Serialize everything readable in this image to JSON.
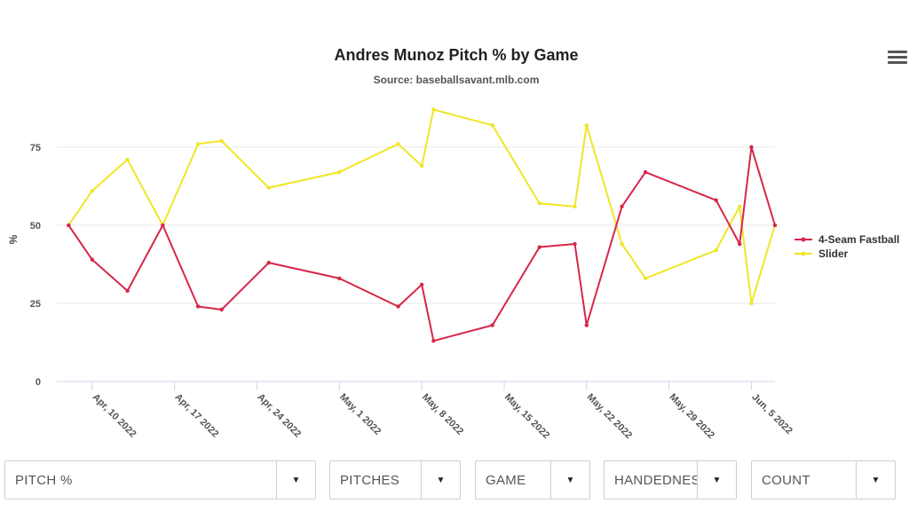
{
  "chart_data": {
    "type": "line",
    "title": "Andres Munoz Pitch % by Game",
    "subtitle": "Source: baseballsavant.mlb.com",
    "ylabel": "%",
    "ylim": [
      0,
      90
    ],
    "yticks": [
      0,
      25,
      50,
      75
    ],
    "xlim": [
      "2022-04-07",
      "2022-06-07"
    ],
    "xticks": [
      "Apr, 10 2022",
      "Apr, 17 2022",
      "Apr, 24 2022",
      "May, 1 2022",
      "May, 8 2022",
      "May, 15 2022",
      "May, 22 2022",
      "May, 29 2022",
      "Jun, 5 2022"
    ],
    "xtick_dates": [
      "2022-04-10",
      "2022-04-17",
      "2022-04-24",
      "2022-05-01",
      "2022-05-08",
      "2022-05-15",
      "2022-05-22",
      "2022-05-29",
      "2022-06-05"
    ],
    "grid": true,
    "legend": "right",
    "x": [
      "2022-04-08",
      "2022-04-10",
      "2022-04-13",
      "2022-04-16",
      "2022-04-19",
      "2022-04-21",
      "2022-04-25",
      "2022-05-01",
      "2022-05-06",
      "2022-05-08",
      "2022-05-09",
      "2022-05-14",
      "2022-05-18",
      "2022-05-21",
      "2022-05-22",
      "2022-05-25",
      "2022-05-27",
      "2022-06-02",
      "2022-06-04",
      "2022-06-05",
      "2022-06-07"
    ],
    "series": [
      {
        "name": "4-Seam Fastball",
        "color": "#d7264a",
        "values": [
          50,
          39,
          29,
          50,
          24,
          23,
          38,
          33,
          24,
          31,
          13,
          18,
          43,
          44,
          18,
          56,
          67,
          58,
          44,
          75,
          50
        ]
      },
      {
        "name": "Slider",
        "color": "#f0e626",
        "values": [
          50,
          61,
          71,
          50,
          76,
          77,
          62,
          67,
          76,
          69,
          87,
          82,
          57,
          56,
          82,
          44,
          33,
          42,
          56,
          25,
          50
        ]
      }
    ]
  },
  "menu": {
    "icon": "hamburger-menu-icon"
  },
  "filters": [
    {
      "label": "PITCH %"
    },
    {
      "label": "PITCHES"
    },
    {
      "label": "GAME"
    },
    {
      "label": "HANDEDNESS"
    },
    {
      "label": "COUNT"
    }
  ],
  "arrow_glyph": "▼"
}
